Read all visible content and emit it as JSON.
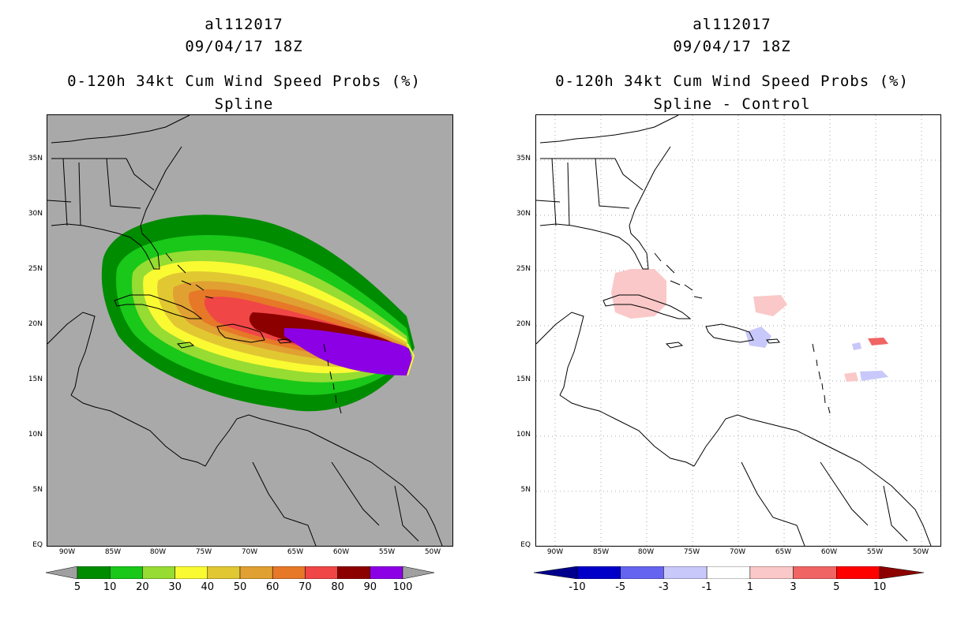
{
  "left": {
    "title1": "al112017",
    "title2": "09/04/17 18Z",
    "title3": "0-120h 34kt Cum Wind Speed Probs (%)",
    "title4": "Spline",
    "colorbar": {
      "labels": [
        "5",
        "10",
        "20",
        "30",
        "40",
        "50",
        "60",
        "70",
        "80",
        "90",
        "100"
      ],
      "colors": [
        "#008c00",
        "#19c819",
        "#96dc32",
        "#fafa32",
        "#e1c832",
        "#e1a032",
        "#e67828",
        "#f04646",
        "#8c0000",
        "#8c00e6"
      ],
      "end_color": "#a0a0a0"
    }
  },
  "right": {
    "title1": "al112017",
    "title2": "09/04/17 18Z",
    "title3": "0-120h 34kt Cum Wind Speed Probs (%)",
    "title4": "Spline - Control",
    "colorbar": {
      "labels": [
        "-10",
        "-5",
        "-3",
        "-1",
        "1",
        "3",
        "5",
        "10"
      ],
      "colors": [
        "#0000c8",
        "#6464f0",
        "#c8c8fa",
        "#ffffff",
        "#fac8c8",
        "#f06464",
        "#ff0000"
      ],
      "low_color": "#00008c",
      "high_color": "#8c0000"
    }
  },
  "axes": {
    "lat_labels": [
      "35N",
      "30N",
      "25N",
      "20N",
      "15N",
      "10N",
      "5N",
      "EQ"
    ],
    "lon_labels": [
      "90W",
      "85W",
      "80W",
      "75W",
      "70W",
      "65W",
      "60W",
      "55W",
      "50W"
    ]
  },
  "colors": {
    "map_background": "#a9a9a9",
    "land_outline": "#000000"
  }
}
